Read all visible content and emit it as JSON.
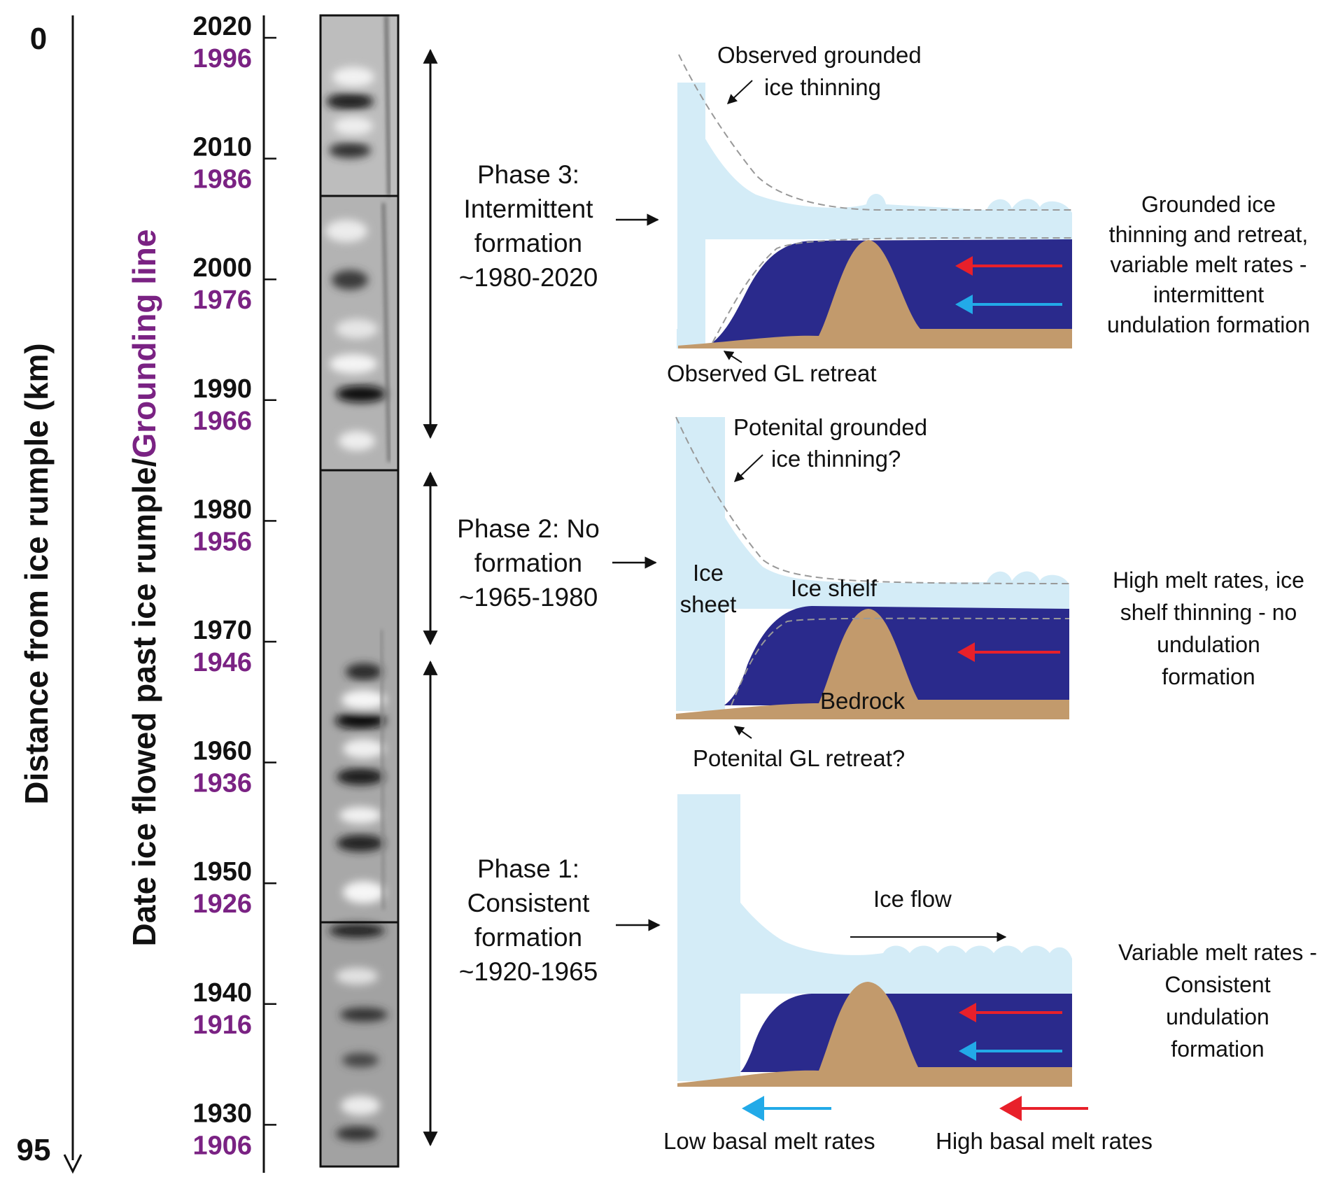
{
  "distance_axis": {
    "label": "Distance from ice rumple (km)",
    "start": "0",
    "end": "95"
  },
  "date_axis": {
    "label_part1": "Date ice flowed past ice rumple/",
    "label_part2": "Grounding line",
    "ticks": [
      {
        "rumple": "2020",
        "grounding": "1996"
      },
      {
        "rumple": "2010",
        "grounding": "1986"
      },
      {
        "rumple": "2000",
        "grounding": "1976"
      },
      {
        "rumple": "1990",
        "grounding": "1966"
      },
      {
        "rumple": "1980",
        "grounding": "1956"
      },
      {
        "rumple": "1970",
        "grounding": "1946"
      },
      {
        "rumple": "1960",
        "grounding": "1936"
      },
      {
        "rumple": "1950",
        "grounding": "1926"
      },
      {
        "rumple": "1940",
        "grounding": "1916"
      },
      {
        "rumple": "1930",
        "grounding": "1906"
      }
    ]
  },
  "phases": [
    {
      "title": [
        "Phase 3:",
        "Intermittent",
        "formation",
        "~1980-2020"
      ],
      "description": [
        "Grounded ice",
        "thinning and retreat,",
        "variable melt rates -",
        "intermittent",
        "undulation formation"
      ],
      "annotations": {
        "top": [
          "Observed grounded",
          "ice thinning"
        ],
        "bottom": "Observed GL retreat"
      }
    },
    {
      "title": [
        "Phase 2: No",
        "formation",
        "~1965-1980"
      ],
      "description": [
        "High melt rates, ice",
        "shelf thinning - no",
        "undulation",
        "formation"
      ],
      "annotations": {
        "top": [
          "Potenital grounded",
          "ice thinning?"
        ],
        "bottom": "Potenital GL retreat?",
        "ice_sheet": [
          "Ice",
          "sheet"
        ],
        "ice_shelf": "Ice shelf",
        "bedrock": "Bedrock"
      }
    },
    {
      "title": [
        "Phase 1:",
        "Consistent",
        "formation",
        "~1920-1965"
      ],
      "description": [
        "Variable melt rates -",
        "Consistent",
        "undulation",
        "formation"
      ],
      "annotations": {
        "ice_flow": "Ice flow"
      }
    }
  ],
  "legend": {
    "low": "Low basal melt rates",
    "high": "High basal melt rates"
  },
  "colors": {
    "ice": "#d4ecf7",
    "ocean": "#2a2a8c",
    "bedrock": "#c29a6c",
    "high_melt": "#e8202a",
    "low_melt": "#22aae8",
    "grounding_line_label": "#7a2283"
  }
}
